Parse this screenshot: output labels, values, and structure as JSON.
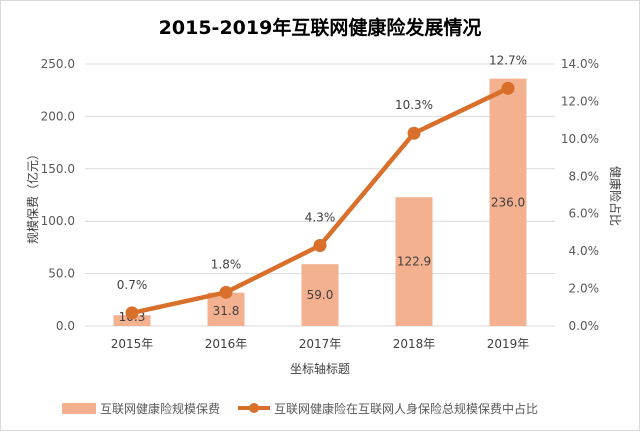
{
  "chart_data": {
    "type": "bar+line",
    "title": "2015-2019年互联网健康险发展情况",
    "xlabel": "坐标轴标题",
    "ylabel": "规模保费（亿元）",
    "y2label": "健康险占比",
    "categories": [
      "2015年",
      "2016年",
      "2017年",
      "2018年",
      "2019年"
    ],
    "ylim": [
      0,
      250
    ],
    "yticks": [
      "0.0",
      "50.0",
      "100.0",
      "150.0",
      "200.0",
      "250.0"
    ],
    "y2lim": [
      0,
      14
    ],
    "y2ticks": [
      "0.0%",
      "2.0%",
      "4.0%",
      "6.0%",
      "8.0%",
      "10.0%",
      "12.0%",
      "14.0%"
    ],
    "grid": true,
    "legend_position": "bottom",
    "series": [
      {
        "name": "互联网健康险规模保费",
        "type": "bar",
        "axis": "left",
        "color": "#f4b18f",
        "values": [
          10.3,
          31.8,
          59.0,
          122.9,
          236.0
        ],
        "labels": [
          "10.3",
          "31.8",
          "59.0",
          "122.9",
          "236.0"
        ]
      },
      {
        "name": "互联网健康险在互联网人身保险总规模保费中占比",
        "type": "line",
        "axis": "right",
        "color": "#d86f2a",
        "values": [
          0.7,
          1.8,
          4.3,
          10.3,
          12.7
        ],
        "labels": [
          "0.7%",
          "1.8%",
          "4.3%",
          "10.3%",
          "12.7%"
        ]
      }
    ]
  }
}
